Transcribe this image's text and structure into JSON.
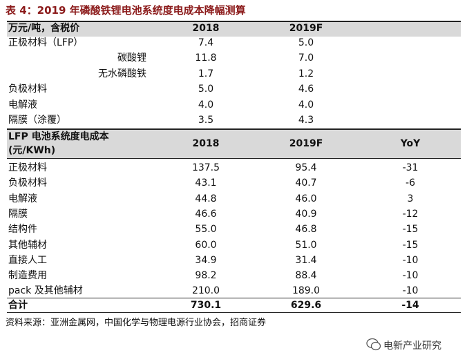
{
  "title": "表 4：2019 年磷酸铁锂电池系统度电成本降幅测算",
  "table1": {
    "header": [
      "万元/吨，含税价",
      "2018",
      "2019F"
    ],
    "rows": [
      [
        "正极材料（LFP）",
        "7.4",
        "5.0"
      ],
      [
        "碳酸锂",
        "11.8",
        "7.0"
      ],
      [
        "无水磷酸铁",
        "1.7",
        "1.2"
      ],
      [
        "负极材料",
        "5.0",
        "4.6"
      ],
      [
        "电解液",
        "4.0",
        "4.0"
      ],
      [
        "隔膜（涂覆）",
        "3.5",
        "4.3"
      ]
    ]
  },
  "table2": {
    "header": [
      [
        "LFP 电池系统度电成本",
        "(元/KWh)"
      ],
      "2018",
      "2019F",
      "YoY"
    ],
    "rows": [
      [
        "正极材料",
        "137.5",
        "95.4",
        "-31"
      ],
      [
        "负极材料",
        "43.1",
        "40.7",
        "-6"
      ],
      [
        "电解液",
        "44.8",
        "46.0",
        "3"
      ],
      [
        "隔膜",
        "46.6",
        "40.9",
        "-12"
      ],
      [
        "结构件",
        "55.0",
        "46.8",
        "-15"
      ],
      [
        "其他辅材",
        "60.0",
        "51.0",
        "-15"
      ],
      [
        "直接人工",
        "34.9",
        "31.4",
        "-10"
      ],
      [
        "制造费用",
        "98.2",
        "88.4",
        "-10"
      ],
      [
        "pack 及其他辅材",
        "210.0",
        "189.0",
        "-10"
      ]
    ],
    "total": [
      "合计",
      "730.1",
      "629.6",
      "-14"
    ]
  },
  "source": "资料来源：亚洲金属网，中国化学与物理电源行业协会，招商证券",
  "watermark": "电新产业研究"
}
